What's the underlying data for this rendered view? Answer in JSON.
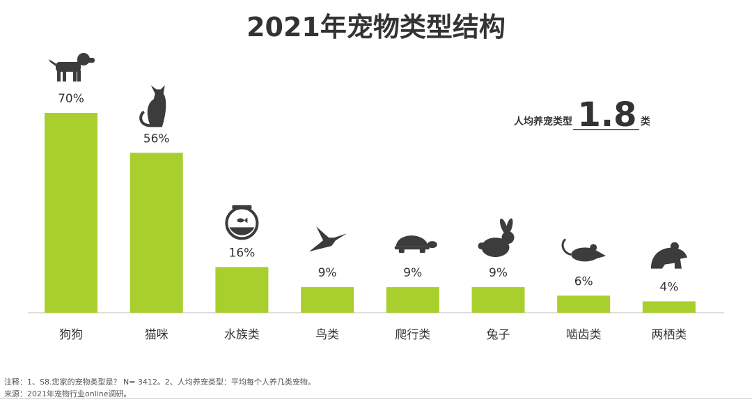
{
  "title": "2021年宠物类型结构",
  "colors": {
    "bar": "#a9cf2e",
    "icon": "#3c3c3c",
    "text": "#333333",
    "axis": "#bdbdbd"
  },
  "stat": {
    "label": "人均养宠类型",
    "value": "1.8",
    "unit": "类"
  },
  "chart_data": {
    "type": "bar",
    "categories": [
      "狗狗",
      "猫咪",
      "水族类",
      "鸟类",
      "爬行类",
      "兔子",
      "啮齿类",
      "两栖类"
    ],
    "values": [
      70,
      56,
      16,
      9,
      9,
      9,
      6,
      4
    ],
    "value_labels": [
      "70%",
      "56%",
      "16%",
      "9%",
      "9%",
      "9%",
      "6%",
      "4%"
    ],
    "icons": [
      "dog-icon",
      "cat-icon",
      "fishbowl-icon",
      "bird-icon",
      "turtle-icon",
      "rabbit-icon",
      "rodent-icon",
      "frog-icon"
    ],
    "ylim": [
      0,
      70
    ],
    "grid": false,
    "legend": "none"
  },
  "notes": {
    "line1": "注释：1、S8.您家的宠物类型是？ N= 3412。2、人均养宠类型：平均每个人养几类宠物。",
    "line2": "来源：2021年宠物行业online调研。"
  }
}
